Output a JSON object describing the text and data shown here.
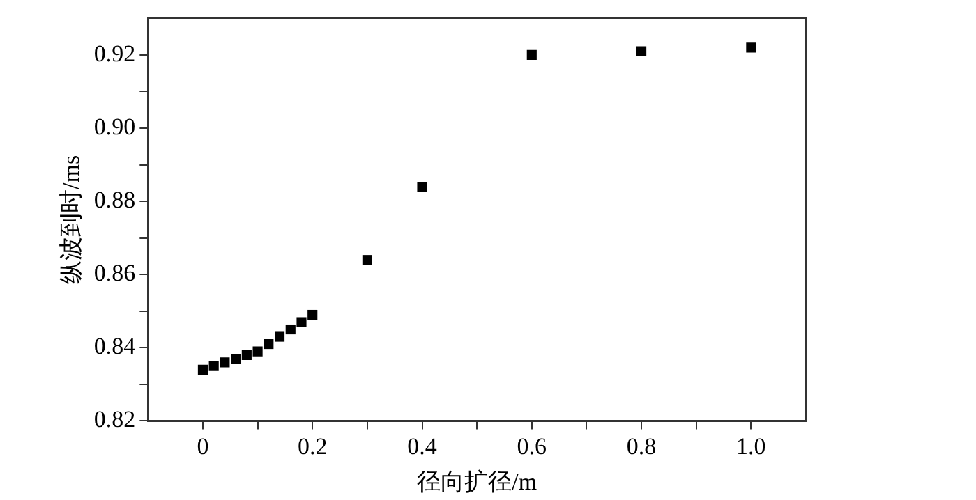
{
  "chart_data": {
    "type": "scatter",
    "xlabel": "径向扩径/m",
    "ylabel": "纵波到时/ms",
    "marker": "square",
    "grid": false,
    "legend": false,
    "x": [
      0,
      0.02,
      0.04,
      0.06,
      0.08,
      0.1,
      0.12,
      0.14,
      0.16,
      0.18,
      0.2,
      0.3,
      0.4,
      0.6,
      0.8,
      1.0
    ],
    "series": [
      {
        "color": "#000000",
        "values": [
          0.834,
          0.835,
          0.836,
          0.837,
          0.838,
          0.839,
          0.841,
          0.843,
          0.845,
          0.847,
          0.849,
          0.864,
          0.884,
          0.92,
          0.921,
          0.922
        ]
      }
    ],
    "xlim": [
      -0.1,
      1.1
    ],
    "xticks": [
      0,
      {
        "value": 0.1,
        "label": null
      },
      0.2,
      {
        "value": 0.3,
        "label": null
      },
      0.4,
      {
        "value": 0.5,
        "label": null
      },
      0.6,
      {
        "value": 0.7,
        "label": null
      },
      0.8,
      {
        "value": 0.9,
        "label": null
      },
      {
        "value": 1.0,
        "label": "1.0"
      }
    ],
    "ylim": [
      0.82,
      0.93
    ],
    "yticks": [
      0.82,
      {
        "value": 0.83,
        "label": null
      },
      0.84,
      {
        "value": 0.85,
        "label": null
      },
      0.86,
      {
        "value": 0.87,
        "label": null
      },
      0.88,
      {
        "value": 0.89,
        "label": null
      },
      {
        "value": 0.9,
        "label": "0.90"
      },
      {
        "value": 0.91,
        "label": null
      },
      0.92
    ]
  }
}
